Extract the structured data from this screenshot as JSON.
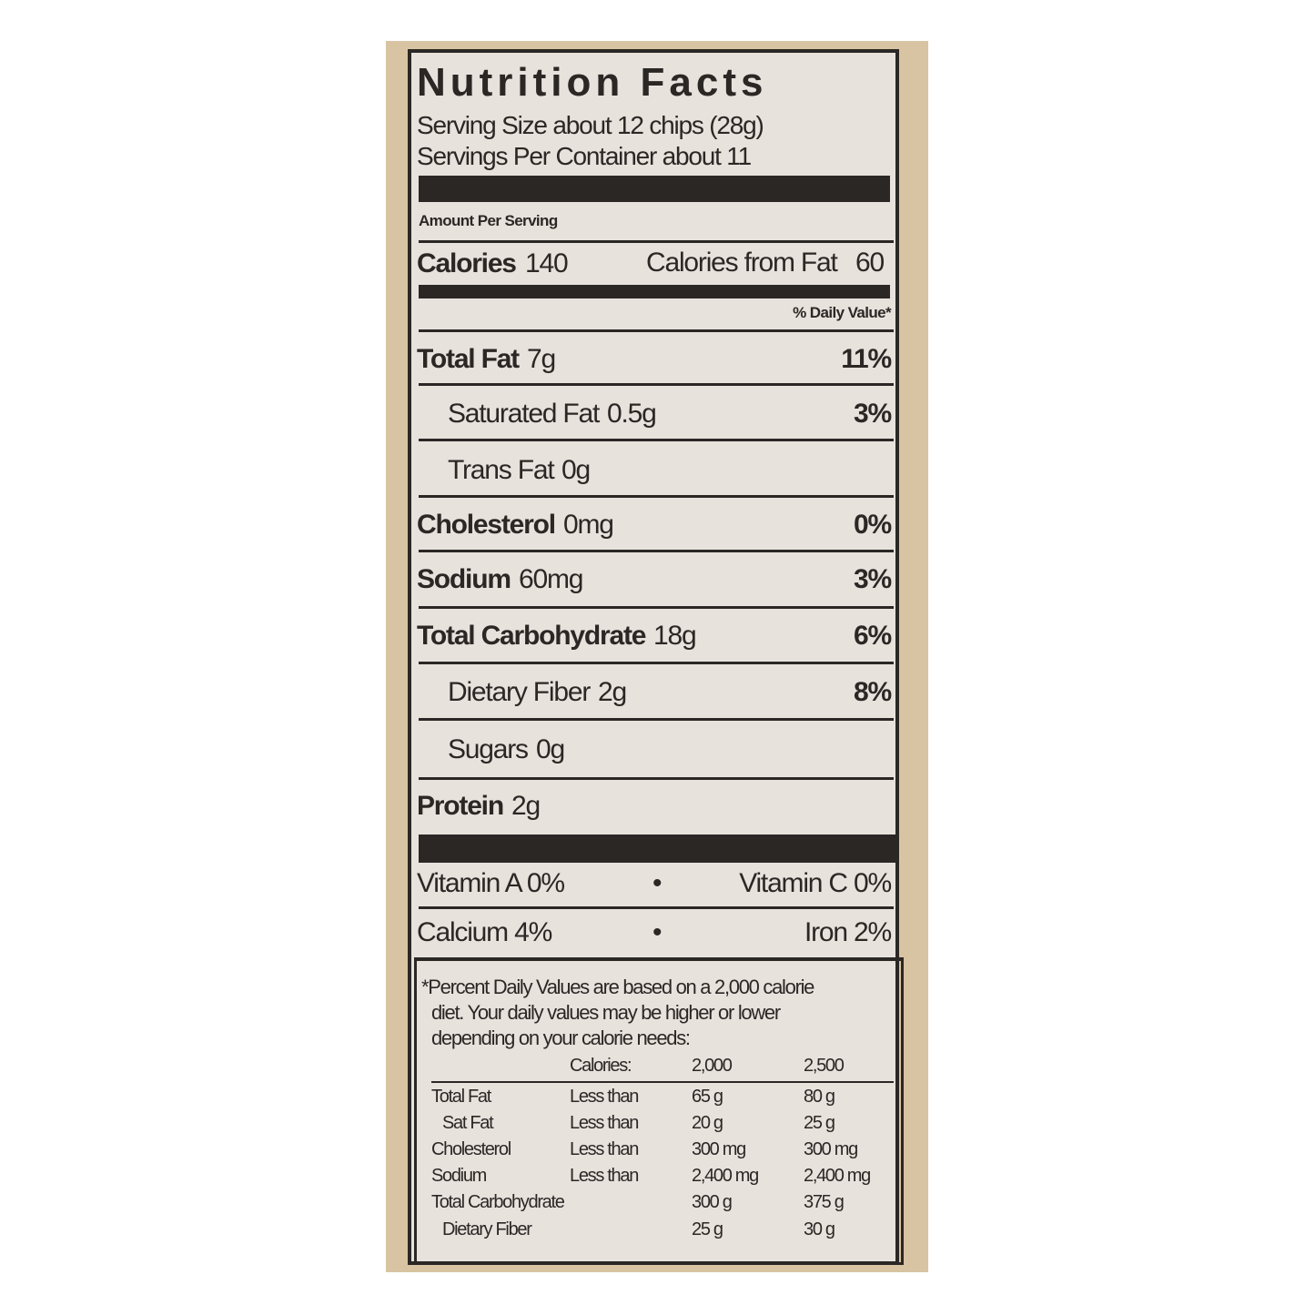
{
  "title": "Nutrition Facts",
  "serving_size": "Serving Size about 12 chips (28g)",
  "servings_per_container": "Servings Per Container about 11",
  "amount_per_serving": "Amount Per Serving",
  "calories": {
    "label": "Calories",
    "value": "140",
    "from_fat_label": "Calories from Fat",
    "from_fat_value": "60"
  },
  "daily_value_header": "% Daily Value*",
  "nutrients": [
    {
      "label": "Total Fat",
      "amount": "7g",
      "dv": "11%"
    },
    {
      "label": "Saturated Fat",
      "amount": "0.5g",
      "dv": "3%"
    },
    {
      "label": "Trans Fat",
      "amount": "0g",
      "dv": ""
    },
    {
      "label": "Cholesterol",
      "amount": "0mg",
      "dv": "0%"
    },
    {
      "label": "Sodium",
      "amount": "60mg",
      "dv": "3%"
    },
    {
      "label": "Total Carbohydrate",
      "amount": "18g",
      "dv": "6%"
    },
    {
      "label": "Dietary Fiber",
      "amount": "2g",
      "dv": "8%"
    },
    {
      "label": "Sugars",
      "amount": "0g",
      "dv": ""
    },
    {
      "label": "Protein",
      "amount": "2g",
      "dv": ""
    }
  ],
  "vitamins": [
    {
      "left": "Vitamin A  0%",
      "sep": "•",
      "right": "Vitamin C  0%"
    },
    {
      "left": "Calcium  4%",
      "sep": "•",
      "right": "Iron  2%"
    }
  ],
  "footnote": [
    "*Percent Daily Values are based on a 2,000 calorie",
    "diet. Your daily values may be higher or lower",
    "depending on your calorie needs:"
  ],
  "dv_table": {
    "header": [
      "",
      "Calories:",
      "2,000",
      "2,500"
    ],
    "rows": [
      [
        "Total Fat",
        "Less than",
        "65 g",
        "80 g"
      ],
      [
        "Sat Fat",
        "Less than",
        "20 g",
        "25 g"
      ],
      [
        "Cholesterol",
        "Less than",
        "300 mg",
        "300 mg"
      ],
      [
        "Sodium",
        "Less than",
        "2,400 mg",
        "2,400 mg"
      ],
      [
        "Total Carbohydrate",
        "",
        "300 g",
        "375 g"
      ],
      [
        "Dietary Fiber",
        "",
        "25 g",
        "30 g"
      ]
    ]
  },
  "colors": {
    "package": "#d8c4a2",
    "label_bg": "#e7e2dc",
    "ink": "#2b2725"
  }
}
